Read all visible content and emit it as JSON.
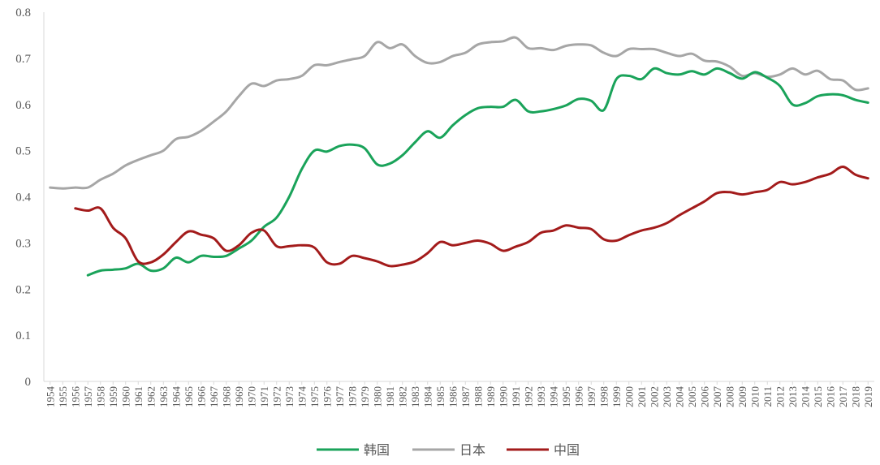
{
  "chart_data": {
    "type": "line",
    "title": "",
    "xlabel": "",
    "ylabel": "",
    "ylim": [
      0,
      0.8
    ],
    "yticks": [
      "0",
      "0.1",
      "0.2",
      "0.3",
      "0.4",
      "0.5",
      "0.6",
      "0.7",
      "0.8"
    ],
    "grid": false,
    "legend_position": "bottom",
    "x": [
      "1954",
      "1955",
      "1956",
      "1957",
      "1958",
      "1959",
      "1960",
      "1961",
      "1962",
      "1963",
      "1964",
      "1965",
      "1966",
      "1967",
      "1968",
      "1969",
      "1970",
      "1971",
      "1972",
      "1973",
      "1974",
      "1975",
      "1976",
      "1977",
      "1978",
      "1979",
      "1980",
      "1981",
      "1982",
      "1983",
      "1984",
      "1985",
      "1986",
      "1987",
      "1988",
      "1989",
      "1990",
      "1991",
      "1992",
      "1993",
      "1994",
      "1995",
      "1996",
      "1997",
      "1998",
      "1999",
      "2000",
      "2001",
      "2002",
      "2003",
      "2004",
      "2005",
      "2006",
      "2007",
      "2008",
      "2009",
      "2010",
      "2011",
      "2012",
      "2013",
      "2014",
      "2015",
      "2016",
      "2017",
      "2018",
      "2019"
    ],
    "series": [
      {
        "name": "韩国",
        "color": "#1aa35a",
        "values": [
          null,
          null,
          null,
          0.23,
          0.24,
          0.242,
          0.245,
          0.255,
          0.24,
          0.245,
          0.268,
          0.258,
          0.272,
          0.27,
          0.272,
          0.288,
          0.305,
          0.335,
          0.355,
          0.4,
          0.46,
          0.5,
          0.498,
          0.51,
          0.513,
          0.505,
          0.47,
          0.472,
          0.49,
          0.518,
          0.542,
          0.528,
          0.555,
          0.577,
          0.592,
          0.595,
          0.595,
          0.61,
          0.585,
          0.585,
          0.59,
          0.598,
          0.612,
          0.608,
          0.588,
          0.655,
          0.662,
          0.655,
          0.678,
          0.668,
          0.665,
          0.672,
          0.665,
          0.678,
          0.668,
          0.656,
          0.67,
          0.658,
          0.64,
          0.6,
          0.603,
          0.618,
          0.622,
          0.62,
          0.61,
          0.604
        ]
      },
      {
        "name": "日本",
        "color": "#a6a6a6",
        "values": [
          0.42,
          0.418,
          0.42,
          0.42,
          0.437,
          0.45,
          0.468,
          0.48,
          0.49,
          0.5,
          0.525,
          0.53,
          0.543,
          0.563,
          0.585,
          0.618,
          0.645,
          0.64,
          0.652,
          0.655,
          0.662,
          0.685,
          0.685,
          0.692,
          0.698,
          0.705,
          0.735,
          0.722,
          0.73,
          0.705,
          0.69,
          0.692,
          0.705,
          0.712,
          0.73,
          0.735,
          0.737,
          0.745,
          0.722,
          0.722,
          0.718,
          0.727,
          0.73,
          0.728,
          0.712,
          0.705,
          0.72,
          0.72,
          0.72,
          0.712,
          0.705,
          0.71,
          0.695,
          0.693,
          0.682,
          0.662,
          0.668,
          0.66,
          0.665,
          0.678,
          0.665,
          0.673,
          0.655,
          0.652,
          0.632,
          0.635
        ]
      },
      {
        "name": "中国",
        "color": "#a31b1b",
        "values": [
          null,
          null,
          0.375,
          0.37,
          0.375,
          0.333,
          0.31,
          0.26,
          0.258,
          0.275,
          0.302,
          0.325,
          0.318,
          0.31,
          0.283,
          0.295,
          0.322,
          0.327,
          0.293,
          0.293,
          0.295,
          0.29,
          0.258,
          0.255,
          0.272,
          0.267,
          0.26,
          0.25,
          0.253,
          0.26,
          0.278,
          0.302,
          0.295,
          0.3,
          0.305,
          0.298,
          0.283,
          0.292,
          0.302,
          0.322,
          0.327,
          0.338,
          0.333,
          0.33,
          0.308,
          0.305,
          0.317,
          0.327,
          0.333,
          0.343,
          0.36,
          0.375,
          0.39,
          0.408,
          0.41,
          0.405,
          0.41,
          0.415,
          0.432,
          0.427,
          0.432,
          0.442,
          0.45,
          0.465,
          0.448,
          0.44
        ]
      }
    ]
  }
}
